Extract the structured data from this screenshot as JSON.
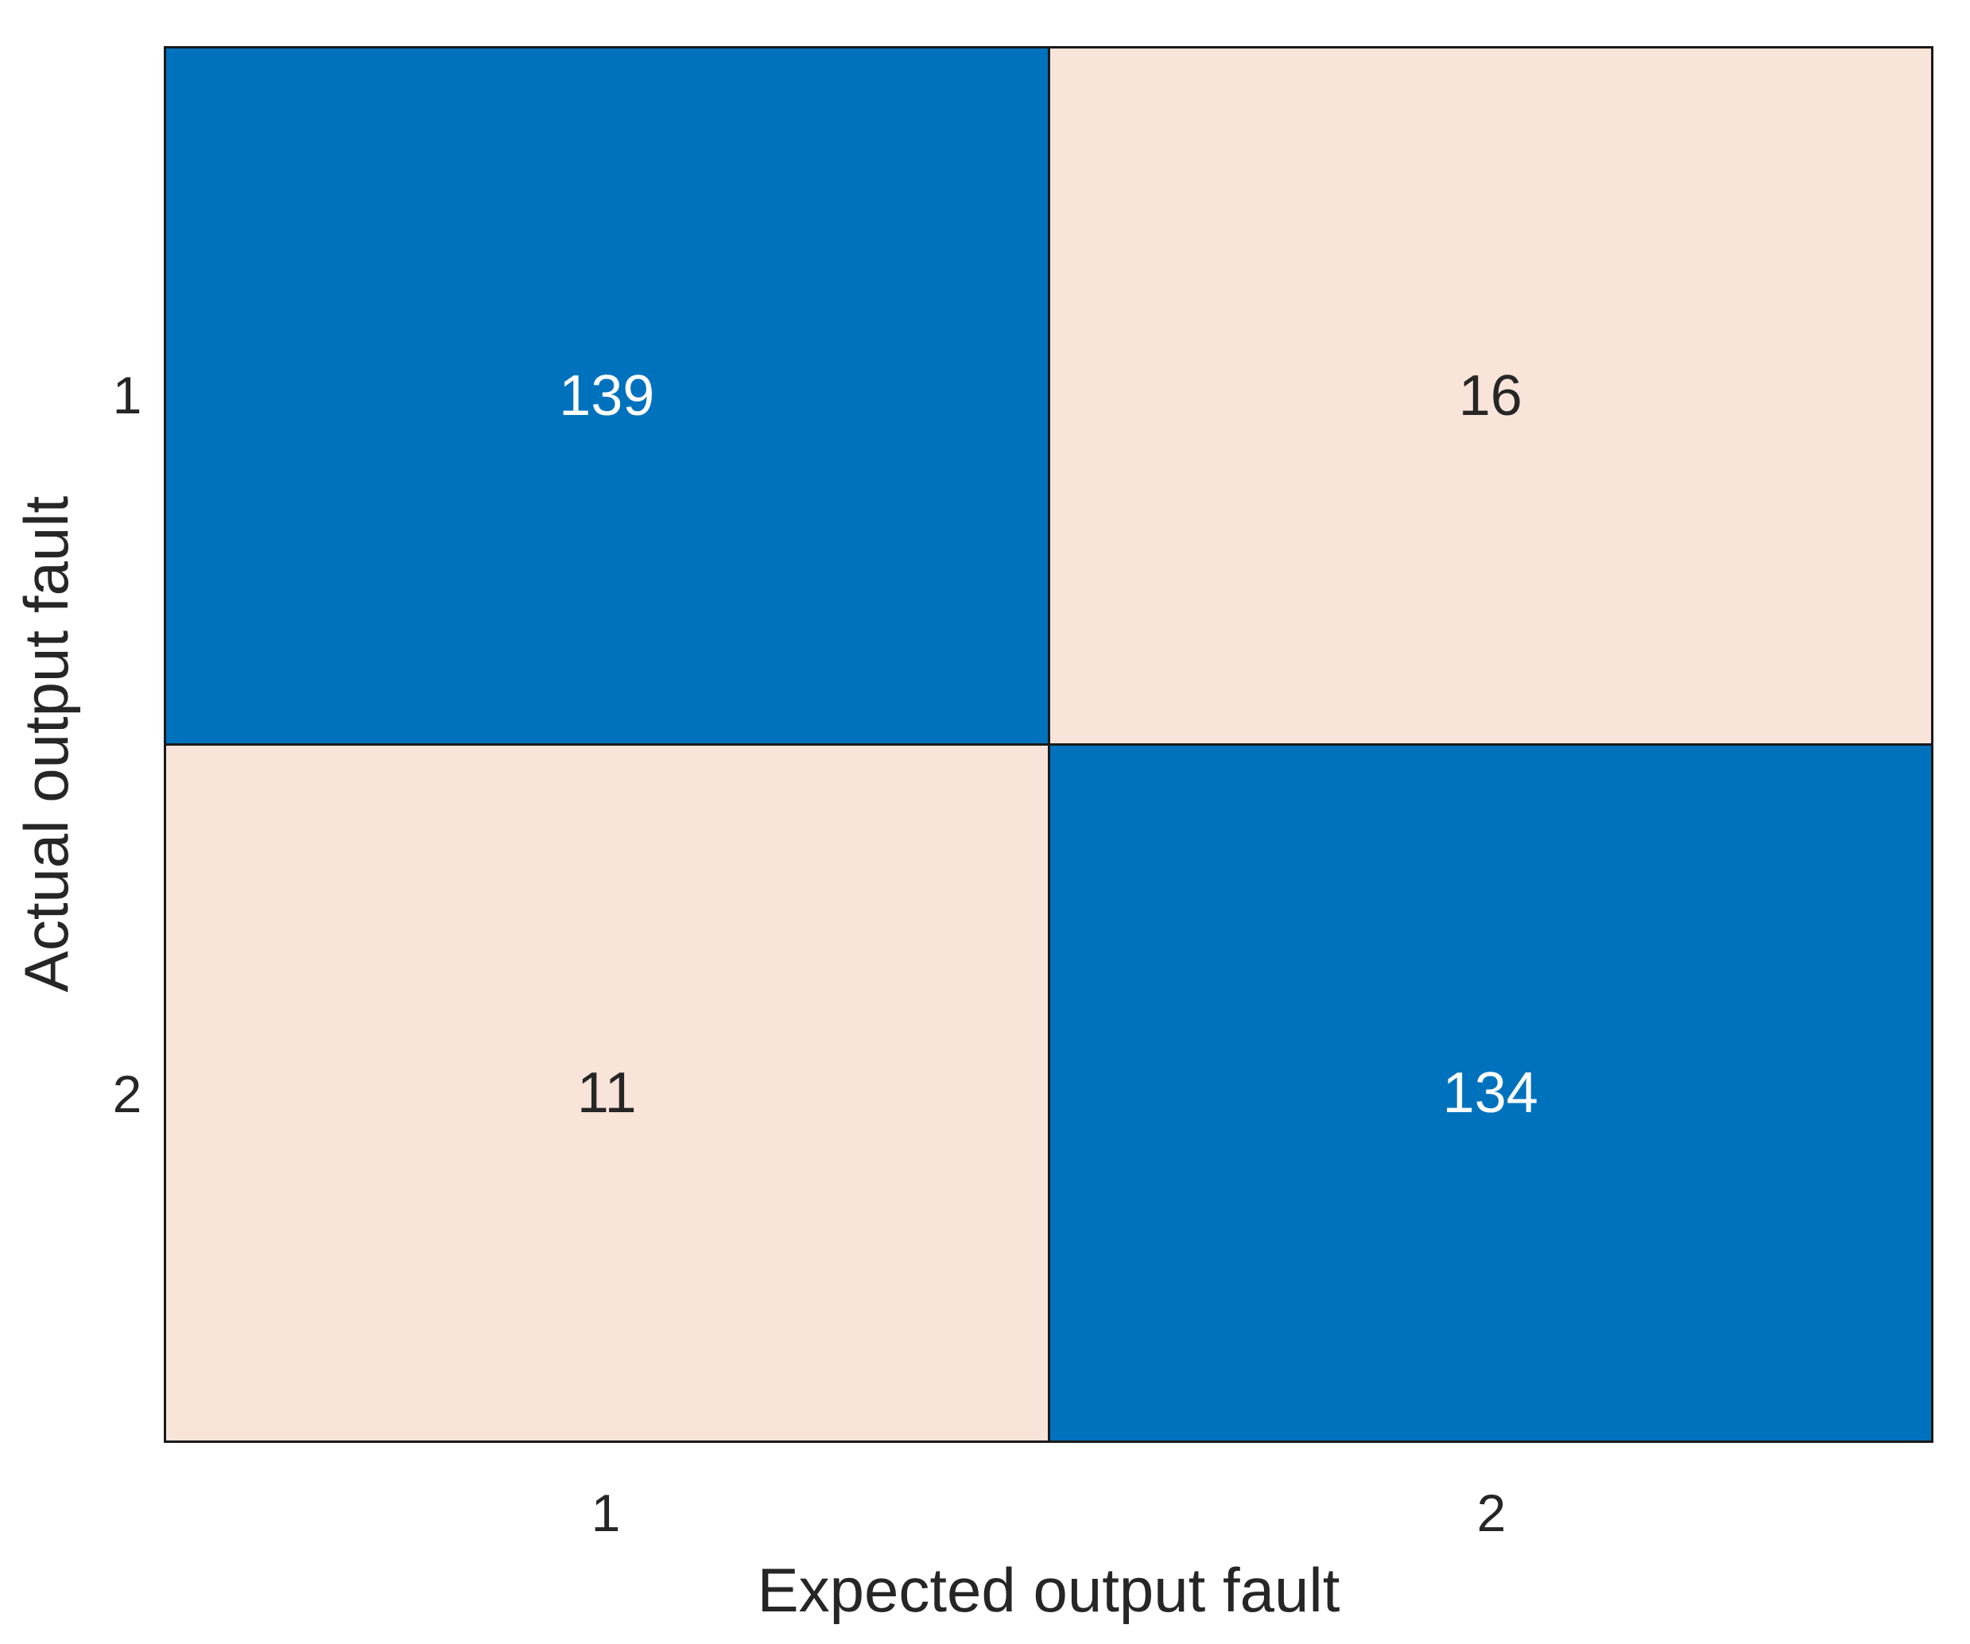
{
  "chart_data": {
    "type": "heatmap",
    "subtype": "confusion-matrix",
    "title": "",
    "xlabel": "Expected output fault",
    "ylabel": "Actual output fault",
    "x_categories": [
      "1",
      "2"
    ],
    "y_categories": [
      "1",
      "2"
    ],
    "matrix": [
      [
        139,
        16
      ],
      [
        11,
        134
      ]
    ],
    "cell_tones": [
      [
        "high",
        "low"
      ],
      [
        "low",
        "high"
      ]
    ],
    "colors": {
      "high": "#0072BD",
      "low": "#F9E4DA",
      "value_on_high": "#FFFFFF",
      "value_on_low": "#262626",
      "axis_text": "#262626",
      "axis_line": "#1A1A1A",
      "background": "#FFFFFF"
    },
    "legend": "none",
    "grid": "cell-dividers",
    "axis_ranges": {
      "x_ticks": [
        "1",
        "2"
      ],
      "y_ticks": [
        "1",
        "2"
      ]
    }
  }
}
